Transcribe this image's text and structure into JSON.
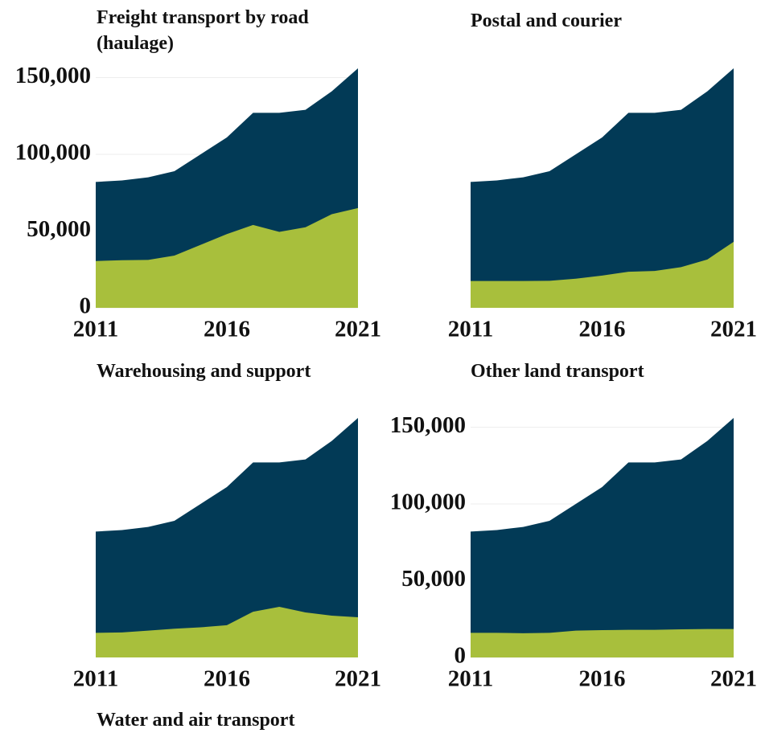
{
  "chart_data": [
    {
      "type": "area",
      "title": "Freight transport by road (haulage)",
      "x": [
        2011,
        2012,
        2013,
        2014,
        2015,
        2016,
        2017,
        2018,
        2019,
        2020,
        2021
      ],
      "xlim": [
        2011,
        2021
      ],
      "xticks": [
        2011,
        2016,
        2021
      ],
      "ylim": [
        0,
        156000
      ],
      "yticks": [
        0,
        {
          "value": 50000,
          "label": "50,000"
        },
        {
          "value": 100000,
          "label": "100,000"
        },
        {
          "value": 150000,
          "label": "150,000"
        }
      ],
      "grid": true,
      "series": [
        {
          "color": "#023a56",
          "values": [
            82000,
            83000,
            85000,
            89000,
            100000,
            111000,
            127000,
            127000,
            129000,
            141000,
            156000
          ]
        },
        {
          "color": "#a8bf3c",
          "values": [
            30500,
            31000,
            31200,
            34000,
            41000,
            48000,
            54000,
            49500,
            52500,
            61000,
            65000
          ]
        }
      ]
    },
    {
      "type": "area",
      "title": "Postal and courier",
      "x": [
        2011,
        2012,
        2013,
        2014,
        2015,
        2016,
        2017,
        2018,
        2019,
        2020,
        2021
      ],
      "xlim": [
        2011,
        2021
      ],
      "xticks": [
        2011,
        2016,
        2021
      ],
      "ylim": [
        0,
        156000
      ],
      "series": [
        {
          "color": "#023a56",
          "values": [
            82000,
            83000,
            85000,
            89000,
            100000,
            111000,
            127000,
            127000,
            129000,
            141000,
            156000
          ]
        },
        {
          "color": "#a8bf3c",
          "values": [
            17500,
            17500,
            17500,
            17600,
            19000,
            21000,
            23500,
            24000,
            26500,
            31500,
            43000
          ]
        }
      ]
    },
    {
      "type": "area",
      "title": "Warehousing and support",
      "x": [
        2011,
        2012,
        2013,
        2014,
        2015,
        2016,
        2017,
        2018,
        2019,
        2020,
        2021
      ],
      "xlim": [
        2011,
        2021
      ],
      "xticks": [
        2011,
        2016,
        2021
      ],
      "ylim": [
        0,
        156000
      ],
      "series": [
        {
          "color": "#023a56",
          "values": [
            82000,
            83000,
            85000,
            89000,
            100000,
            111000,
            127000,
            127000,
            129000,
            141000,
            156000
          ]
        },
        {
          "color": "#a8bf3c",
          "values": [
            16000,
            16300,
            17500,
            18700,
            19600,
            21000,
            29800,
            33000,
            29300,
            27200,
            26200
          ]
        }
      ]
    },
    {
      "type": "area",
      "title": "Other land transport",
      "x": [
        2011,
        2012,
        2013,
        2014,
        2015,
        2016,
        2017,
        2018,
        2019,
        2020,
        2021
      ],
      "xlim": [
        2011,
        2021
      ],
      "xticks": [
        2011,
        2016,
        2021
      ],
      "ylim": [
        0,
        156000
      ],
      "yticks": [
        0,
        {
          "value": 50000,
          "label": "50,000"
        },
        {
          "value": 100000,
          "label": "100,000"
        },
        {
          "value": 150000,
          "label": "150,000"
        }
      ],
      "grid": true,
      "series": [
        {
          "color": "#023a56",
          "values": [
            82000,
            83000,
            85000,
            89000,
            100000,
            111000,
            127000,
            127000,
            129000,
            141000,
            156000
          ]
        },
        {
          "color": "#a8bf3c",
          "values": [
            16000,
            16000,
            15800,
            16000,
            17500,
            17800,
            18000,
            18000,
            18300,
            18500,
            18500
          ]
        }
      ]
    },
    {
      "type": "area",
      "title": "Water and air transport"
    }
  ]
}
